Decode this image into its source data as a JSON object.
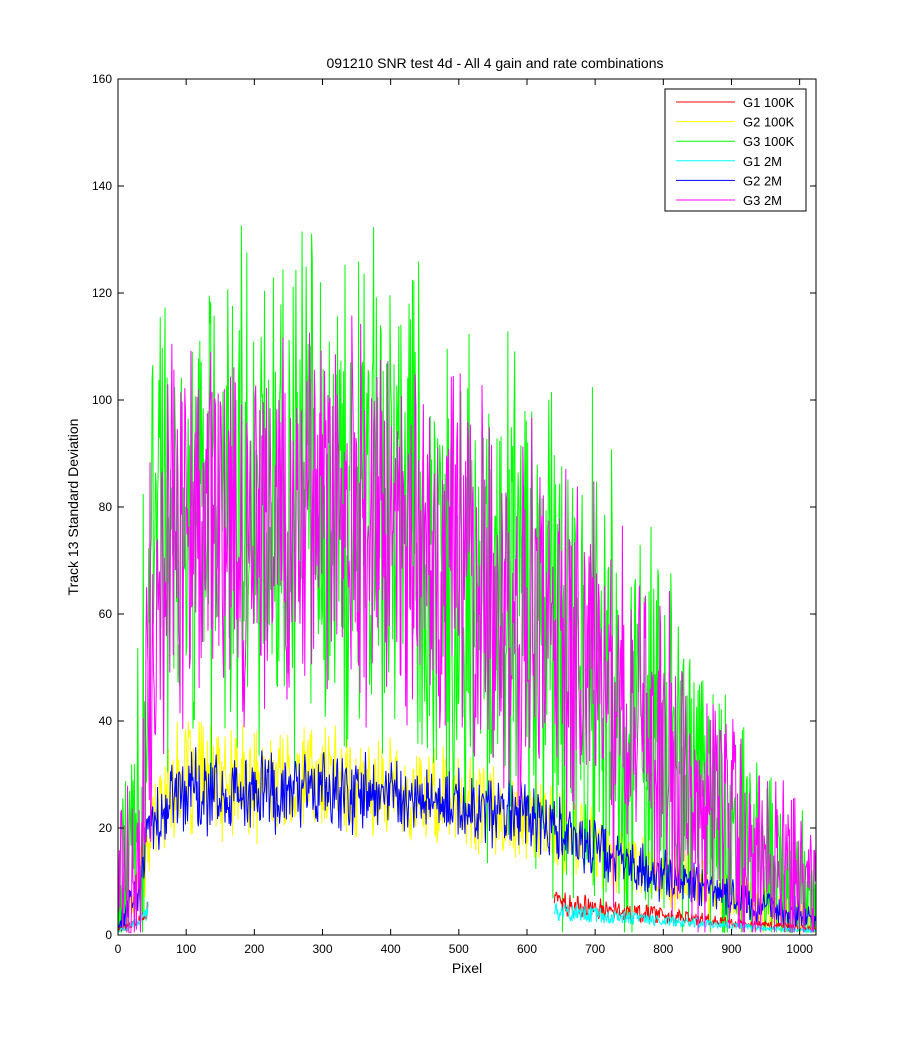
{
  "chart_data": {
    "type": "line",
    "title": "091210  SNR test 4d - All 4 gain and rate combinations",
    "xlabel": "Pixel",
    "ylabel": "Track 13 Standard Deviation",
    "xlim": [
      0,
      1024
    ],
    "ylim": [
      0,
      160
    ],
    "x_ticks": [
      0,
      100,
      200,
      300,
      400,
      500,
      600,
      700,
      800,
      900,
      1000
    ],
    "y_ticks": [
      0,
      20,
      40,
      60,
      80,
      100,
      120,
      140,
      160
    ],
    "grid": false,
    "legend_position": "top-right",
    "series": [
      {
        "name": "G1 100K",
        "color": "#ff0000",
        "segments": [
          {
            "x": [
              1,
              10,
              20,
              30,
              40,
              44
            ],
            "y": [
              1,
              1.5,
              2,
              2.5,
              3.5,
              5
            ]
          },
          {
            "x": [
              640,
              660,
              680,
              700,
              720,
              740,
              760,
              780,
              800,
              820,
              840,
              860,
              880,
              900,
              920,
              940,
              960,
              980,
              1000,
              1024
            ],
            "y": [
              7,
              5.5,
              5.5,
              5,
              5,
              4.5,
              4,
              4,
              3.5,
              3.5,
              3,
              3,
              2.5,
              2.5,
              2,
              2,
              1.8,
              1.6,
              1.4,
              1.2
            ]
          }
        ]
      },
      {
        "name": "G2 100K",
        "color": "#ffff00",
        "points": [
          [
            1,
            3
          ],
          [
            10,
            5
          ],
          [
            20,
            6
          ],
          [
            30,
            10
          ],
          [
            40,
            15
          ],
          [
            50,
            20
          ],
          [
            60,
            24
          ],
          [
            80,
            28
          ],
          [
            100,
            30
          ],
          [
            150,
            29
          ],
          [
            200,
            28
          ],
          [
            250,
            29
          ],
          [
            300,
            29
          ],
          [
            350,
            28
          ],
          [
            400,
            27
          ],
          [
            450,
            26
          ],
          [
            500,
            25
          ],
          [
            550,
            23
          ],
          [
            600,
            21
          ],
          [
            650,
            20
          ],
          [
            700,
            17
          ],
          [
            750,
            14
          ],
          [
            800,
            11
          ],
          [
            850,
            9
          ],
          [
            900,
            7
          ],
          [
            950,
            5
          ],
          [
            1000,
            4
          ],
          [
            1024,
            3
          ]
        ],
        "noise": 12
      },
      {
        "name": "G3 100K",
        "color": "#00ff00",
        "points": [
          [
            1,
            8
          ],
          [
            10,
            10
          ],
          [
            20,
            14
          ],
          [
            30,
            22
          ],
          [
            40,
            45
          ],
          [
            50,
            70
          ],
          [
            70,
            74
          ],
          [
            100,
            77
          ],
          [
            150,
            80
          ],
          [
            200,
            81
          ],
          [
            250,
            82
          ],
          [
            300,
            82
          ],
          [
            350,
            80
          ],
          [
            400,
            78
          ],
          [
            450,
            74
          ],
          [
            500,
            68
          ],
          [
            550,
            64
          ],
          [
            600,
            58
          ],
          [
            650,
            55
          ],
          [
            700,
            48
          ],
          [
            750,
            40
          ],
          [
            800,
            33
          ],
          [
            850,
            25
          ],
          [
            900,
            18
          ],
          [
            950,
            12
          ],
          [
            1000,
            8
          ],
          [
            1024,
            5
          ]
        ],
        "noise": 40
      },
      {
        "name": "G1 2M",
        "color": "#00ffff",
        "segments": [
          {
            "x": [
              1,
              10,
              20,
              30,
              40,
              44
            ],
            "y": [
              0.8,
              1.2,
              1.8,
              2.5,
              3.5,
              5
            ]
          },
          {
            "x": [
              640,
              660,
              680,
              700,
              720,
              740,
              760,
              780,
              800,
              820,
              840,
              860,
              880,
              900,
              920,
              940,
              960,
              980,
              1000,
              1024
            ],
            "y": [
              4.5,
              4.2,
              4,
              3.8,
              3.6,
              3.4,
              3.2,
              3,
              2.8,
              2.6,
              2.4,
              2.2,
              2,
              1.8,
              1.6,
              1.4,
              1.2,
              1.1,
              1,
              0.8
            ]
          }
        ]
      },
      {
        "name": "G2 2M",
        "color": "#0000ff",
        "points": [
          [
            1,
            3
          ],
          [
            10,
            4
          ],
          [
            20,
            6
          ],
          [
            30,
            8
          ],
          [
            40,
            16
          ],
          [
            50,
            21
          ],
          [
            80,
            26
          ],
          [
            100,
            27
          ],
          [
            150,
            27
          ],
          [
            200,
            27
          ],
          [
            250,
            27
          ],
          [
            300,
            27
          ],
          [
            350,
            26
          ],
          [
            400,
            26
          ],
          [
            450,
            25
          ],
          [
            500,
            24
          ],
          [
            550,
            23
          ],
          [
            600,
            22
          ],
          [
            650,
            19
          ],
          [
            700,
            16
          ],
          [
            750,
            13
          ],
          [
            800,
            11
          ],
          [
            850,
            9
          ],
          [
            900,
            7
          ],
          [
            950,
            5
          ],
          [
            1000,
            4
          ],
          [
            1024,
            3
          ]
        ],
        "noise": 9
      },
      {
        "name": "G3 2M",
        "color": "#ff00ff",
        "points": [
          [
            1,
            9
          ],
          [
            10,
            10
          ],
          [
            20,
            12
          ],
          [
            30,
            18
          ],
          [
            40,
            35
          ],
          [
            50,
            55
          ],
          [
            70,
            68
          ],
          [
            100,
            74
          ],
          [
            150,
            77
          ],
          [
            200,
            78
          ],
          [
            250,
            78
          ],
          [
            300,
            78
          ],
          [
            350,
            77
          ],
          [
            400,
            75
          ],
          [
            450,
            72
          ],
          [
            500,
            68
          ],
          [
            550,
            63
          ],
          [
            600,
            58
          ],
          [
            650,
            54
          ],
          [
            700,
            48
          ],
          [
            750,
            41
          ],
          [
            800,
            34
          ],
          [
            850,
            26
          ],
          [
            900,
            20
          ],
          [
            950,
            15
          ],
          [
            1000,
            10
          ],
          [
            1024,
            8
          ]
        ],
        "noise": 30
      }
    ]
  }
}
